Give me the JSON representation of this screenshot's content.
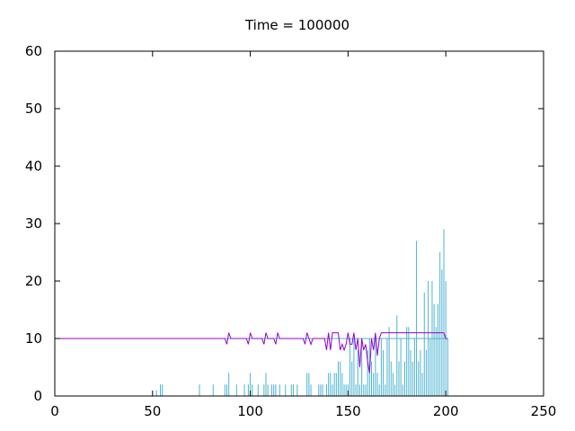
{
  "chart_data": {
    "type": "bar",
    "title": "Time = 100000",
    "xlabel": "",
    "ylabel": "",
    "xlim": [
      0,
      250
    ],
    "ylim": [
      0,
      60
    ],
    "xticks": [
      "0",
      "50",
      "100",
      "150",
      "200",
      "250"
    ],
    "yticks": [
      "0",
      "10",
      "20",
      "30",
      "40",
      "50",
      "60"
    ],
    "grid": false,
    "colors": {
      "bars": "#4db3d1",
      "line": "#9400d3",
      "baseline": "#4db3d1",
      "axes": "#000000"
    },
    "bars": {
      "x": [
        52,
        54,
        55,
        74,
        81,
        87,
        88,
        89,
        93,
        97,
        99,
        100,
        101,
        104,
        107,
        108,
        109,
        111,
        112,
        113,
        115,
        118,
        121,
        122,
        124,
        129,
        130,
        131,
        135,
        136,
        137,
        139,
        140,
        141,
        142,
        143,
        144,
        145,
        146,
        147,
        148,
        149,
        150,
        151,
        152,
        153,
        154,
        155,
        156,
        157,
        158,
        159,
        160,
        161,
        162,
        163,
        164,
        165,
        166,
        167,
        168,
        169,
        170,
        171,
        172,
        173,
        174,
        175,
        176,
        177,
        178,
        179,
        180,
        181,
        182,
        183,
        184,
        185,
        186,
        187,
        188,
        189,
        190,
        191,
        192,
        193,
        194,
        195,
        196,
        197,
        198,
        199,
        200,
        201
      ],
      "values": [
        1,
        2,
        2,
        2,
        2,
        2,
        2,
        4,
        2,
        2,
        2,
        4,
        2,
        2,
        2,
        4,
        2,
        2,
        2,
        2,
        2,
        2,
        2,
        2,
        2,
        4,
        4,
        2,
        2,
        2,
        2,
        2,
        4,
        4,
        2,
        4,
        4,
        6,
        6,
        4,
        2,
        2,
        2,
        10,
        6,
        10,
        2,
        8,
        2,
        10,
        2,
        2,
        8,
        10,
        6,
        4,
        10,
        4,
        2,
        10,
        8,
        2,
        10,
        12,
        6,
        4,
        2,
        14,
        6,
        10,
        2,
        6,
        12,
        12,
        8,
        6,
        10,
        27,
        6,
        8,
        4,
        18,
        8,
        20,
        10,
        20,
        16,
        12,
        16,
        25,
        22,
        29,
        20,
        10
      ]
    },
    "line": {
      "x": [
        0,
        87,
        88,
        89,
        90,
        93,
        98,
        99,
        100,
        101,
        104,
        106,
        107,
        108,
        109,
        112,
        113,
        114,
        115,
        116,
        127,
        128,
        129,
        130,
        131,
        132,
        138,
        139,
        140,
        141,
        142,
        143,
        144,
        145,
        146,
        147,
        148,
        149,
        150,
        151,
        152,
        153,
        154,
        155,
        156,
        157,
        158,
        159,
        160,
        161,
        162,
        163,
        164,
        165,
        166,
        167,
        168,
        169,
        170,
        199,
        200,
        201
      ],
      "values": [
        10,
        10,
        9,
        11,
        10,
        10,
        10,
        9,
        11,
        10,
        10,
        10,
        9,
        11,
        10,
        10,
        9,
        11,
        10,
        10,
        10,
        9,
        11,
        10,
        9,
        10,
        10,
        8,
        11,
        8,
        11,
        11,
        11,
        11,
        8,
        9,
        8,
        9,
        11,
        9,
        9,
        11,
        8,
        10,
        5,
        10,
        8,
        9,
        6,
        4,
        10,
        8,
        11,
        7,
        10,
        11,
        11,
        11,
        11,
        11,
        10,
        10
      ]
    },
    "baseline": {
      "y": 10,
      "x_range": [
        0,
        201
      ]
    }
  }
}
